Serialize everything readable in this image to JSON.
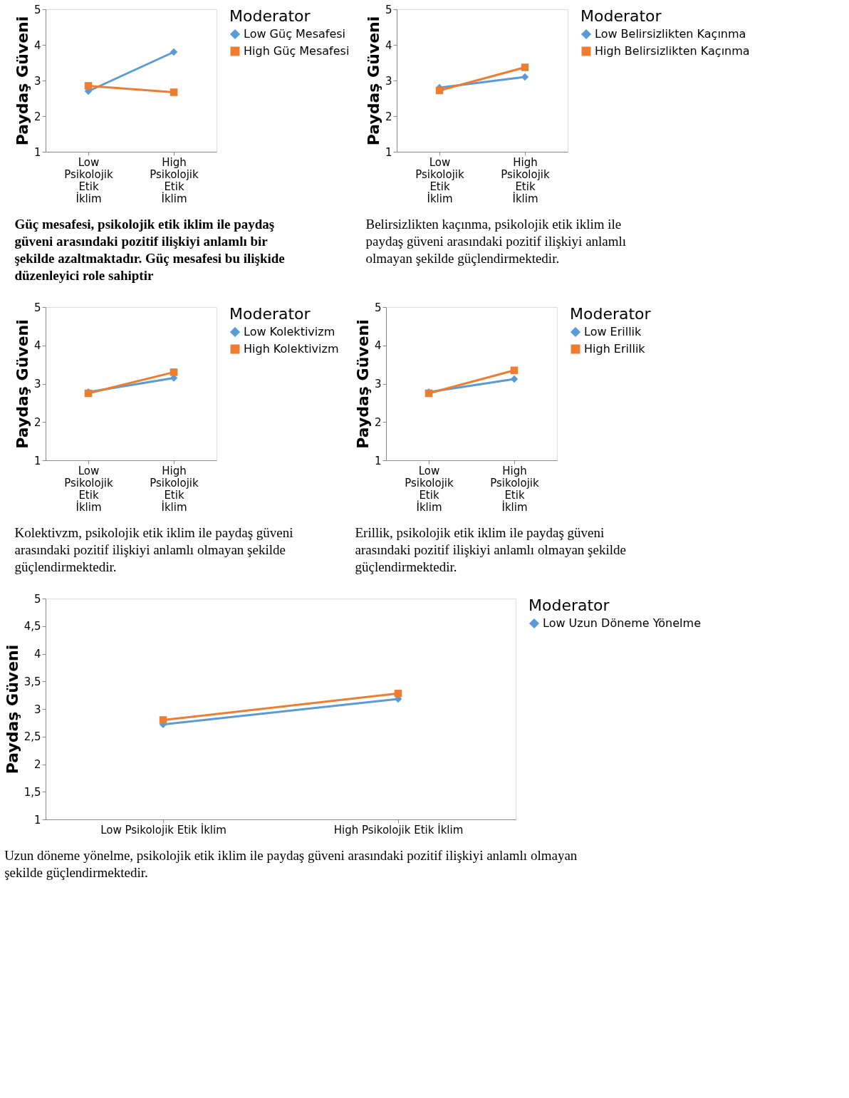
{
  "chart_data": [
    {
      "type": "line",
      "ylabel": "Paydaş Güveni",
      "legend_title": "Moderator",
      "legend": "right",
      "categories": [
        "Low Psikolojik Etik İklim",
        "High Psikolojik Etik İklim"
      ],
      "ylim": [
        1,
        5
      ],
      "yticks": [
        1,
        2,
        3,
        4,
        5
      ],
      "grid": false,
      "series": [
        {
          "name": "Low Güç Mesafesi",
          "color": "#5b9bd5",
          "marker": "diamond",
          "values": [
            2.7,
            3.8
          ]
        },
        {
          "name": "High Güç Mesafesi",
          "color": "#ed7d31",
          "marker": "square",
          "values": [
            2.85,
            2.67
          ]
        }
      ],
      "annotations": [
        "Güç mesafesi, psikolojik etik iklim ile paydaş güveni arasındaki pozitif ilişkiyi anlamlı bir şekilde azaltmaktadır. Güç mesafesi bu ilişkide düzenleyici role sahiptir"
      ]
    },
    {
      "type": "line",
      "ylabel": "Paydaş Güveni",
      "legend_title": "Moderator",
      "legend": "right",
      "categories": [
        "Low Psikolojik Etik İklim",
        "High Psikolojik Etik İklim"
      ],
      "ylim": [
        1,
        5
      ],
      "yticks": [
        1,
        2,
        3,
        4,
        5
      ],
      "grid": false,
      "series": [
        {
          "name": "Low Belirsizlikten Kaçınma",
          "color": "#5b9bd5",
          "marker": "diamond",
          "values": [
            2.8,
            3.1
          ]
        },
        {
          "name": "High Belirsizlikten Kaçınma",
          "color": "#ed7d31",
          "marker": "square",
          "values": [
            2.72,
            3.37
          ]
        }
      ],
      "annotations": [
        "Belirsizlikten kaçınma, psikolojik etik iklim ile paydaş güveni arasındaki pozitif ilişkiyi anlamlı olmayan şekilde güçlendirmektedir."
      ]
    },
    {
      "type": "line",
      "ylabel": "Paydaş Güveni",
      "legend_title": "Moderator",
      "legend": "right",
      "categories": [
        "Low Psikolojik Etik İklim",
        "High Psikolojik Etik İklim"
      ],
      "ylim": [
        1,
        5
      ],
      "yticks": [
        1,
        2,
        3,
        4,
        5
      ],
      "grid": false,
      "series": [
        {
          "name": "Low Kolektivizm",
          "color": "#5b9bd5",
          "marker": "diamond",
          "values": [
            2.78,
            3.15
          ]
        },
        {
          "name": "High Kolektivizm",
          "color": "#ed7d31",
          "marker": "square",
          "values": [
            2.75,
            3.3
          ]
        }
      ],
      "annotations": [
        "Kolektivzm, psikolojik etik iklim ile paydaş güveni arasındaki pozitif ilişkiyi anlamlı olmayan şekilde güçlendirmektedir."
      ]
    },
    {
      "type": "line",
      "ylabel": "Paydaş Güveni",
      "legend_title": "Moderator",
      "legend": "right",
      "categories": [
        "Low Psikolojik Etik İklim",
        "High Psikolojik Etik İklim"
      ],
      "ylim": [
        1,
        5
      ],
      "yticks": [
        1,
        2,
        3,
        4,
        5
      ],
      "grid": false,
      "series": [
        {
          "name": "Low Erillik",
          "color": "#5b9bd5",
          "marker": "diamond",
          "values": [
            2.78,
            3.12
          ]
        },
        {
          "name": "High Erillik",
          "color": "#ed7d31",
          "marker": "square",
          "values": [
            2.75,
            3.35
          ]
        }
      ],
      "annotations": [
        "Erillik, psikolojik etik iklim ile paydaş güveni arasındaki pozitif ilişkiyi anlamlı olmayan şekilde güçlendirmektedir."
      ]
    },
    {
      "type": "line",
      "ylabel": "Paydaş Güveni",
      "legend_title": "Moderator",
      "legend": "right",
      "categories": [
        "Low Psikolojik Etik İklim",
        "High Psikolojik Etik İklim"
      ],
      "ylim": [
        1,
        5
      ],
      "grid": false,
      "yticks": [
        1,
        {
          "value": 1.5,
          "label": "1,5"
        },
        2,
        {
          "value": 2.5,
          "label": "2,5"
        },
        3,
        {
          "value": 3.5,
          "label": "3,5"
        },
        4,
        {
          "value": 4.5,
          "label": "4,5"
        },
        5
      ],
      "series": [
        {
          "name": "Low Uzun Döneme Yönelme",
          "color": "#5b9bd5",
          "marker": "diamond",
          "values": [
            2.72,
            3.18
          ]
        },
        {
          "color": "#ed7d31",
          "marker": "square",
          "values": [
            2.8,
            3.28
          ]
        }
      ],
      "annotations": [
        "Uzun döneme yönelme, psikolojik etik iklim ile paydaş güveni arasındaki pozitif ilişkiyi anlamlı olmayan şekilde güçlendirmektedir."
      ]
    }
  ]
}
